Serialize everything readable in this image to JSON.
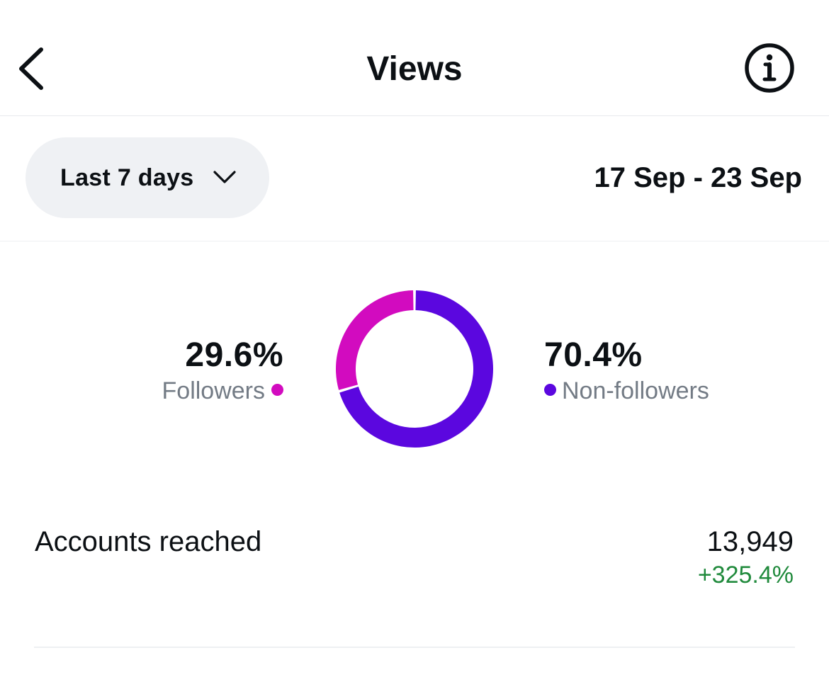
{
  "header": {
    "title": "Views",
    "back_icon": "chevron-left-icon",
    "info_icon": "info-circle-icon"
  },
  "filter": {
    "range_label": "Last 7 days",
    "dropdown_icon": "chevron-down-icon",
    "date_range": "17 Sep - 23 Sep"
  },
  "chart_data": {
    "type": "pie",
    "categories": [
      "Followers",
      "Non-followers"
    ],
    "values": [
      29.6,
      70.4
    ],
    "value_labels": [
      "29.6%",
      "70.4%"
    ],
    "colors": [
      "#d20bbf",
      "#5b07df"
    ],
    "donut": true,
    "title": ""
  },
  "reach": {
    "label": "Accounts reached",
    "value": "13,949",
    "change": "+325.4%",
    "change_color": "#208a3c"
  }
}
